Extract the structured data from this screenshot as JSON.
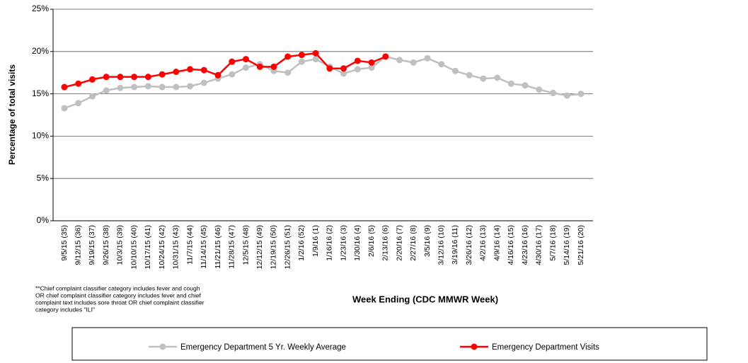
{
  "chart_data": {
    "type": "line",
    "y_label": "Percentage of total visits",
    "x_label": "Week Ending (CDC MMWR Week)",
    "footnote": [
      "**Chief complaint classifier category includes fever and cough",
      "OR chief complaint classifier category includes fever and chief",
      "complaint text includes sore throat OR chief complaint classifier",
      "category includes \"ILI\""
    ],
    "categories": [
      "9/5/15 (35)",
      "9/12/15 (36)",
      "9/19/15 (37)",
      "9/26/15 (38)",
      "10/3/15 (39)",
      "10/10/15 (40)",
      "10/17/15 (41)",
      "10/24/15 (42)",
      "10/31/15 (43)",
      "11/7/15 (44)",
      "11/14/15 (45)",
      "11/21/15 (46)",
      "11/28/15 (47)",
      "12/5/15 (48)",
      "12/12/15 (49)",
      "12/19/15 (50)",
      "12/26/15 (51)",
      "1/2/16 (52)",
      "1/9/16 (1)",
      "1/16/16 (2)",
      "1/23/16 (3)",
      "1/30/16 (4)",
      "2/6/16 (5)",
      "2/13/16 (6)",
      "2/20/16 (7)",
      "2/27/16 (8)",
      "3/5/16 (9)",
      "3/12/16 (10)",
      "3/19/16 (11)",
      "3/26/16 (12)",
      "4/2/16 (13)",
      "4/9/16 (14)",
      "4/16/16 (15)",
      "4/23/16 (16)",
      "4/30/16 (17)",
      "5/7/16 (18)",
      "5/14/16 (19)",
      "5/21/16 (20)"
    ],
    "series": [
      {
        "name": "Emergency Department 5 Yr. Weekly Average",
        "color": "#c0c0c0",
        "values": [
          13.3,
          13.9,
          14.7,
          15.4,
          15.7,
          15.8,
          15.9,
          15.8,
          15.8,
          15.9,
          16.3,
          16.8,
          17.3,
          18.1,
          18.5,
          17.7,
          17.5,
          18.8,
          19.1,
          18.2,
          17.4,
          17.9,
          18.1,
          19.4,
          19.0,
          18.7,
          19.2,
          18.5,
          17.7,
          17.2,
          16.8,
          16.9,
          16.2,
          16.0,
          15.5,
          15.1,
          14.8,
          15.0
        ]
      },
      {
        "name": "Emergency Department Visits",
        "color": "#ff0000",
        "values": [
          15.8,
          16.2,
          16.7,
          17.0,
          17.0,
          17.0,
          17.0,
          17.3,
          17.6,
          17.9,
          17.8,
          17.2,
          18.8,
          19.1,
          18.2,
          18.2,
          19.4,
          19.6,
          19.8,
          18.0,
          18.0,
          18.9,
          18.7,
          19.4,
          null,
          null,
          null,
          null,
          null,
          null,
          null,
          null,
          null,
          null,
          null,
          null,
          null,
          null
        ]
      }
    ],
    "ylim": [
      0,
      25
    ],
    "yticks": [
      {
        "value": 0,
        "label": "0%"
      },
      {
        "value": 5,
        "label": "5%"
      },
      {
        "value": 10,
        "label": "10%"
      },
      {
        "value": 15,
        "label": "15%"
      },
      {
        "value": 20,
        "label": "20%"
      },
      {
        "value": 25,
        "label": "25%"
      }
    ],
    "grid": true
  }
}
